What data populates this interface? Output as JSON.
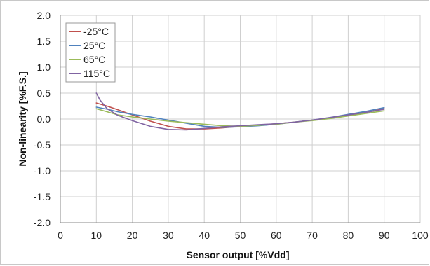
{
  "chart_data": {
    "type": "line",
    "title": "",
    "xlabel": "Sensor output [%Vdd]",
    "ylabel": "Non-linearity [%F.S.]",
    "xlim": [
      0,
      100
    ],
    "ylim": [
      -2.0,
      2.0
    ],
    "x_ticks": [
      0,
      10,
      20,
      30,
      40,
      50,
      60,
      70,
      80,
      90,
      100
    ],
    "y_ticks": [
      2.0,
      1.5,
      1.0,
      0.5,
      0.0,
      -0.5,
      -1.0,
      -1.5,
      -2.0
    ],
    "x_tick_labels": [
      "0",
      "10",
      "20",
      "30",
      "40",
      "50",
      "60",
      "70",
      "80",
      "90",
      "100"
    ],
    "y_tick_labels": [
      "2.0",
      "1.5",
      "1.0",
      "0.5",
      "0.0",
      "-0.5",
      "-1.0",
      "-1.5",
      "-2.0"
    ],
    "grid": true,
    "legend_position": "top-left",
    "series": [
      {
        "name": "-25°C",
        "color": "#c0504d",
        "x": [
          10,
          13,
          16,
          20,
          25,
          30,
          35,
          40,
          45,
          50,
          55,
          60,
          65,
          70,
          75,
          80,
          85,
          90
        ],
        "y": [
          0.31,
          0.25,
          0.18,
          0.08,
          -0.04,
          -0.14,
          -0.19,
          -0.19,
          -0.17,
          -0.14,
          -0.12,
          -0.09,
          -0.06,
          -0.02,
          0.02,
          0.07,
          0.13,
          0.2
        ]
      },
      {
        "name": "25°C",
        "color": "#4f81bd",
        "x": [
          10,
          13,
          16,
          20,
          25,
          30,
          35,
          40,
          45,
          50,
          55,
          60,
          65,
          70,
          75,
          80,
          85,
          90
        ],
        "y": [
          0.23,
          0.19,
          0.14,
          0.09,
          0.04,
          -0.02,
          -0.08,
          -0.14,
          -0.16,
          -0.15,
          -0.13,
          -0.1,
          -0.06,
          -0.02,
          0.03,
          0.09,
          0.15,
          0.22
        ]
      },
      {
        "name": "65°C",
        "color": "#9bbb59",
        "x": [
          10,
          13,
          16,
          20,
          25,
          30,
          35,
          40,
          45,
          50,
          55,
          60,
          65,
          70,
          75,
          80,
          85,
          90
        ],
        "y": [
          0.2,
          0.14,
          0.08,
          0.04,
          0.0,
          -0.04,
          -0.07,
          -0.1,
          -0.13,
          -0.14,
          -0.12,
          -0.1,
          -0.06,
          -0.03,
          0.01,
          0.06,
          0.11,
          0.16
        ]
      },
      {
        "name": "115°C",
        "color": "#8064a2",
        "x": [
          10,
          11,
          13,
          16,
          20,
          25,
          30,
          35,
          40,
          45,
          50,
          55,
          60,
          65,
          70,
          75,
          80,
          85,
          90
        ],
        "y": [
          0.5,
          0.37,
          0.2,
          0.07,
          -0.03,
          -0.14,
          -0.2,
          -0.21,
          -0.18,
          -0.15,
          -0.13,
          -0.11,
          -0.09,
          -0.06,
          -0.02,
          0.03,
          0.08,
          0.13,
          0.19
        ]
      }
    ]
  }
}
